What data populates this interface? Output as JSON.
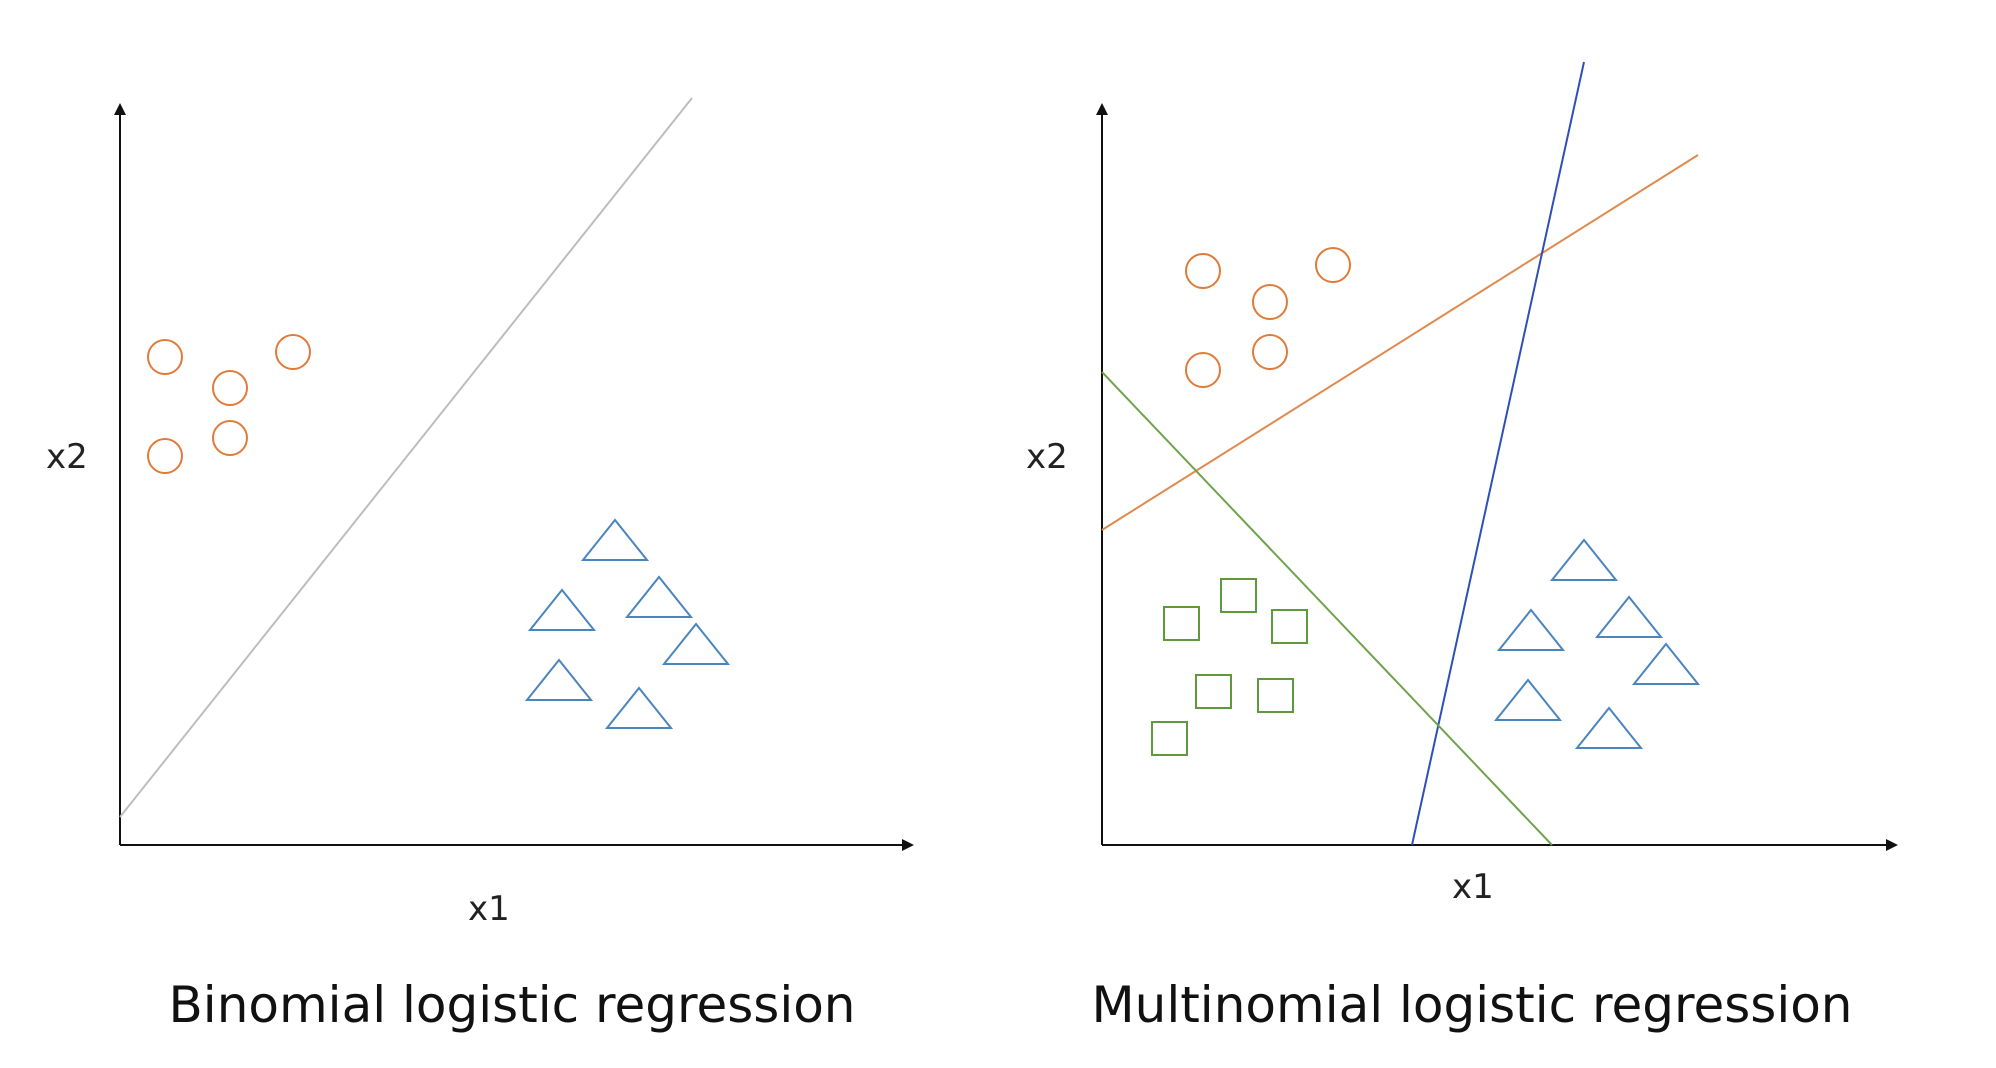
{
  "colors": {
    "axis": "#111111",
    "class_circle": "#E07B39",
    "class_triangle": "#4A86BE",
    "class_square": "#5E9A3C",
    "boundary_binomial": "#BDBDBD",
    "boundary_orange": "#E08A4F",
    "boundary_blue": "#2F4FB8",
    "boundary_green": "#6FA34E"
  },
  "panels": [
    {
      "id": "binomial",
      "x_axis_label": "x1",
      "y_axis_label": "x2",
      "caption": "Binomial logistic regression"
    },
    {
      "id": "multinomial",
      "x_axis_label": "x1",
      "y_axis_label": "x2",
      "caption": "Multinomial logistic regression"
    }
  ]
}
